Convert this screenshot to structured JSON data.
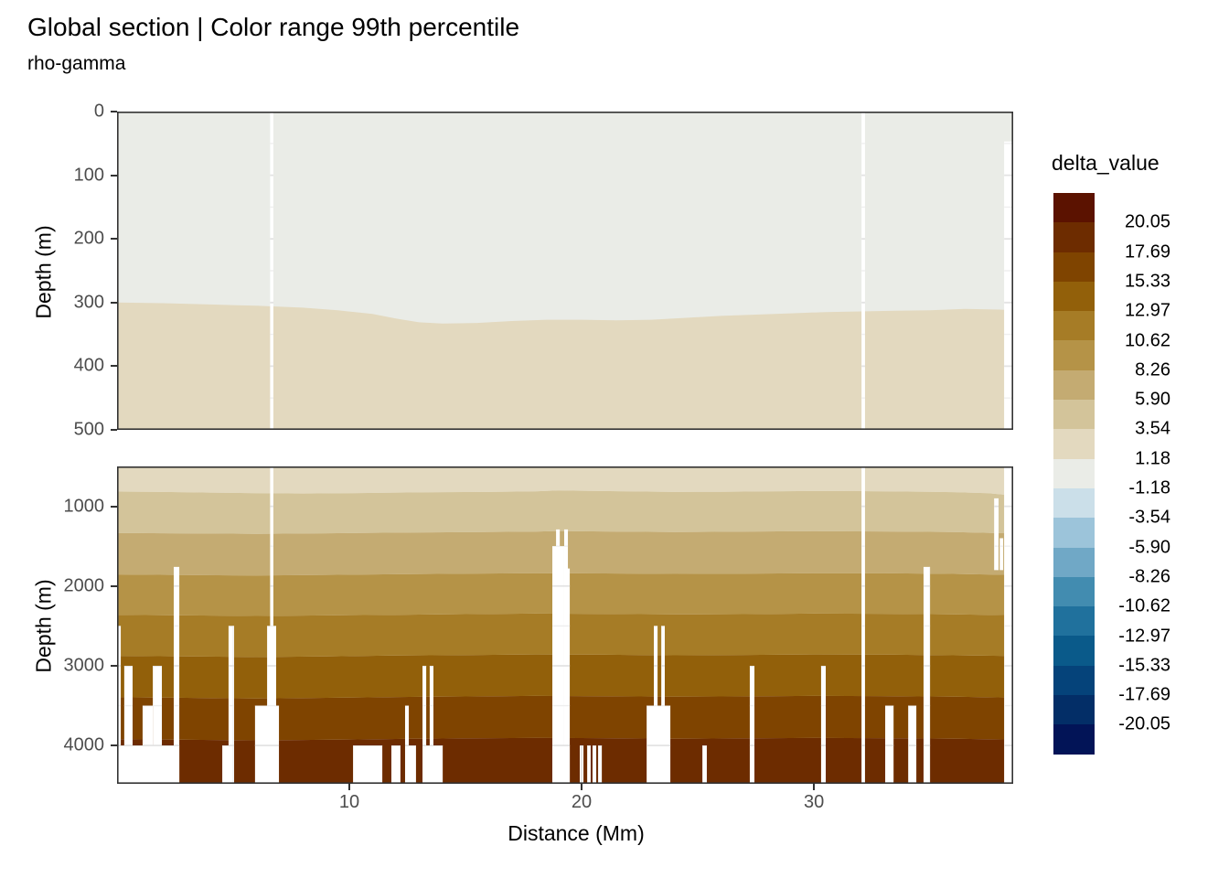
{
  "chart_data": {
    "type": "heatmap",
    "title": "Global section | Color range 99th percentile",
    "subtitle": "rho-gamma",
    "x": {
      "label": "Distance (Mm)",
      "range": [
        0,
        38.58
      ],
      "ticks": [
        10,
        20,
        30
      ]
    },
    "y": {
      "label": "Depth (m)",
      "top_panel": {
        "range": [
          0,
          500
        ],
        "ticks": [
          0,
          100,
          200,
          300,
          400,
          500
        ]
      },
      "bottom_panel": {
        "range": [
          500,
          4480
        ],
        "ticks": [
          1000,
          2000,
          3000,
          4000
        ]
      }
    },
    "legend": {
      "title": "delta_value",
      "boundary_labels": [
        "20.05",
        "17.69",
        "15.33",
        "12.97",
        "10.62",
        "8.26",
        "5.90",
        "3.54",
        "1.18",
        "-1.18",
        "-3.54",
        "-5.90",
        "-8.26",
        "-10.62",
        "-12.97",
        "-15.33",
        "-17.69",
        "-20.05"
      ],
      "colors_top_to_bottom": [
        "#5b1200",
        "#6d2c00",
        "#7f4400",
        "#92600a",
        "#a67c26",
        "#b59347",
        "#c4ab72",
        "#d3c49a",
        "#e3d9bf",
        "#eaece7",
        "#cbdfe9",
        "#9cc4da",
        "#70a8c6",
        "#428cb0",
        "#20719d",
        "#0a5a8a",
        "#05437a",
        "#032e67",
        "#021457"
      ]
    },
    "top_panel": {
      "background_color": "#eaece7",
      "lower_band_color": "#e3d9bf",
      "boundary_depth_points": [
        [
          0,
          300
        ],
        [
          2,
          301
        ],
        [
          4,
          303
        ],
        [
          6,
          305
        ],
        [
          6.7,
          306
        ],
        [
          8,
          308
        ],
        [
          9.5,
          312
        ],
        [
          11,
          318
        ],
        [
          12,
          325
        ],
        [
          13,
          331
        ],
        [
          14,
          333
        ],
        [
          15.5,
          332
        ],
        [
          17,
          329
        ],
        [
          18.5,
          327
        ],
        [
          20,
          327
        ],
        [
          21.5,
          328
        ],
        [
          23,
          327
        ],
        [
          24.5,
          324
        ],
        [
          26,
          321
        ],
        [
          27.5,
          319
        ],
        [
          29,
          317
        ],
        [
          30.5,
          315
        ],
        [
          32,
          314
        ],
        [
          33.5,
          313
        ],
        [
          35,
          312
        ],
        [
          36.5,
          310
        ],
        [
          38,
          311
        ],
        [
          38.58,
          312
        ]
      ],
      "gaps": [
        [
          6.59,
          6.73,
          0
        ],
        [
          32.05,
          32.2,
          0
        ],
        [
          38.19,
          38.54,
          47
        ]
      ]
    },
    "bottom_panel": {
      "band_colors_top_to_bottom": [
        "#e3d9bf",
        "#d3c49a",
        "#c4ab72",
        "#b59347",
        "#a67c26",
        "#92600a",
        "#7f4400",
        "#6d2c00"
      ],
      "band_boundaries_depth_points": [
        [
          [
            0,
            815
          ],
          [
            2,
            820
          ],
          [
            4,
            828
          ],
          [
            6,
            835
          ],
          [
            8,
            840
          ],
          [
            10,
            835
          ],
          [
            12,
            828
          ],
          [
            14,
            822
          ],
          [
            16,
            820
          ],
          [
            18,
            812
          ],
          [
            19,
            800
          ],
          [
            20,
            805
          ],
          [
            22,
            812
          ],
          [
            24,
            820
          ],
          [
            26,
            818
          ],
          [
            28,
            812
          ],
          [
            30,
            808
          ],
          [
            32,
            810
          ],
          [
            34,
            815
          ],
          [
            36,
            822
          ],
          [
            37.5,
            835
          ],
          [
            38.58,
            865
          ]
        ],
        [
          [
            0,
            1335
          ],
          [
            3,
            1340
          ],
          [
            6,
            1345
          ],
          [
            9,
            1338
          ],
          [
            12,
            1330
          ],
          [
            15,
            1325
          ],
          [
            18,
            1318
          ],
          [
            19,
            1310
          ],
          [
            21,
            1315
          ],
          [
            24,
            1322
          ],
          [
            27,
            1318
          ],
          [
            30,
            1312
          ],
          [
            33,
            1315
          ],
          [
            36,
            1322
          ],
          [
            38.58,
            1340
          ]
        ],
        [
          [
            0,
            1855
          ],
          [
            3,
            1862
          ],
          [
            6,
            1868
          ],
          [
            9,
            1860
          ],
          [
            12,
            1852
          ],
          [
            15,
            1845
          ],
          [
            18,
            1838
          ],
          [
            21,
            1842
          ],
          [
            24,
            1848
          ],
          [
            27,
            1844
          ],
          [
            30,
            1838
          ],
          [
            33,
            1840
          ],
          [
            36,
            1848
          ],
          [
            38.58,
            1860
          ]
        ],
        [
          [
            0,
            2360
          ],
          [
            3,
            2368
          ],
          [
            6,
            2375
          ],
          [
            9,
            2368
          ],
          [
            12,
            2360
          ],
          [
            15,
            2352
          ],
          [
            18,
            2345
          ],
          [
            21,
            2350
          ],
          [
            24,
            2356
          ],
          [
            27,
            2352
          ],
          [
            30,
            2346
          ],
          [
            33,
            2348
          ],
          [
            36,
            2355
          ],
          [
            38.58,
            2365
          ]
        ],
        [
          [
            0,
            2875
          ],
          [
            3,
            2882
          ],
          [
            6,
            2890
          ],
          [
            9,
            2882
          ],
          [
            12,
            2872
          ],
          [
            15,
            2865
          ],
          [
            18,
            2858
          ],
          [
            21,
            2862
          ],
          [
            24,
            2868
          ],
          [
            27,
            2864
          ],
          [
            30,
            2858
          ],
          [
            33,
            2860
          ],
          [
            36,
            2868
          ],
          [
            38.58,
            2878
          ]
        ],
        [
          [
            0,
            3395
          ],
          [
            3,
            3402
          ],
          [
            6,
            3410
          ],
          [
            9,
            3402
          ],
          [
            12,
            3392
          ],
          [
            15,
            3385
          ],
          [
            18,
            3378
          ],
          [
            21,
            3382
          ],
          [
            24,
            3388
          ],
          [
            27,
            3384
          ],
          [
            30,
            3378
          ],
          [
            33,
            3380
          ],
          [
            36,
            3388
          ],
          [
            38.58,
            3398
          ]
        ],
        [
          [
            0,
            3920
          ],
          [
            3,
            3928
          ],
          [
            6,
            3935
          ],
          [
            9,
            3928
          ],
          [
            12,
            3918
          ],
          [
            15,
            3910
          ],
          [
            18,
            3905
          ],
          [
            21,
            3908
          ],
          [
            24,
            3915
          ],
          [
            27,
            3910
          ],
          [
            30,
            3905
          ],
          [
            33,
            3908
          ],
          [
            36,
            3915
          ],
          [
            38.58,
            3925
          ]
        ]
      ],
      "gaps": [
        [
          0,
          0.16,
          2500
        ],
        [
          0.31,
          0.67,
          3000
        ],
        [
          1.1,
          1.54,
          3500
        ],
        [
          1.54,
          1.93,
          3000
        ],
        [
          2.44,
          2.68,
          1760
        ],
        [
          0,
          2.68,
          4000
        ],
        [
          4.8,
          5.04,
          2500
        ],
        [
          4.53,
          5.0,
          4000
        ],
        [
          6.46,
          6.85,
          2500
        ],
        [
          5.94,
          6.97,
          3500
        ],
        [
          6.59,
          6.73,
          500
        ],
        [
          10.16,
          11.42,
          4000
        ],
        [
          11.81,
          12.2,
          4000
        ],
        [
          12.4,
          12.56,
          3500
        ],
        [
          12.44,
          12.87,
          4000
        ],
        [
          13.15,
          13.31,
          3000
        ],
        [
          13.46,
          13.62,
          3000
        ],
        [
          13.19,
          14.02,
          4000
        ],
        [
          18.74,
          19.25,
          1500
        ],
        [
          18.9,
          19.06,
          1290
        ],
        [
          19.25,
          19.41,
          1290
        ],
        [
          19.25,
          19.49,
          1780
        ],
        [
          18.74,
          19.49,
          4000
        ],
        [
          19.92,
          20.08,
          4000
        ],
        [
          20.24,
          20.39,
          4000
        ],
        [
          20.47,
          20.63,
          4000
        ],
        [
          20.71,
          20.87,
          4000
        ],
        [
          23.11,
          23.27,
          2500
        ],
        [
          23.43,
          23.58,
          2500
        ],
        [
          22.8,
          23.82,
          3500
        ],
        [
          25.2,
          25.39,
          4000
        ],
        [
          27.24,
          27.44,
          3000
        ],
        [
          30.31,
          30.51,
          3000
        ],
        [
          32.05,
          32.2,
          500
        ],
        [
          33.07,
          33.43,
          3500
        ],
        [
          34.06,
          34.41,
          3500
        ],
        [
          34.72,
          35.0,
          1760
        ],
        [
          37.76,
          37.95,
          900,
          1800
        ],
        [
          38.0,
          38.15,
          1400,
          1800
        ],
        [
          38.19,
          38.54,
          500
        ]
      ]
    },
    "gridlines": {
      "vertical_major": [
        10,
        20,
        30
      ],
      "vertical_minor": [
        5,
        15,
        25,
        35
      ],
      "top_horizontal_major": [
        100,
        200,
        300,
        400
      ],
      "top_horizontal_minor": [
        50,
        150,
        250,
        350,
        450
      ],
      "bottom_horizontal_major": [
        1000,
        2000,
        3000,
        4000
      ],
      "bottom_horizontal_minor": [
        1500,
        2500,
        3500
      ]
    },
    "style": {
      "panel_border_color": "#333333",
      "tick_color": "#333333",
      "tick_label_color": "#4d4d4d",
      "grid_major_color": "#e3e3e3",
      "grid_minor_color": "#efefef",
      "gap_color": "#ffffff"
    }
  }
}
